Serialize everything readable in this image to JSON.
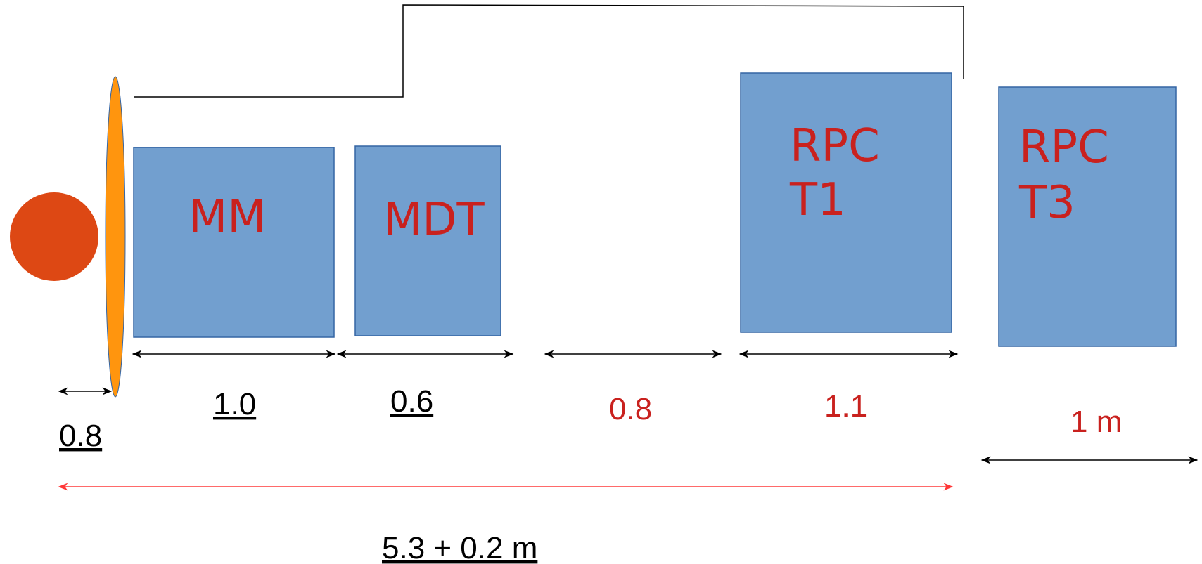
{
  "colors": {
    "box_fill": "#729fcf",
    "box_stroke": "#3465a4",
    "label_red": "#c9211e",
    "circle": "#dd4814",
    "ellipse": "#ff950e",
    "total_arrow": "#ff3838"
  },
  "boxes": [
    {
      "id": "mm",
      "lines": [
        "MM"
      ]
    },
    {
      "id": "mdt",
      "lines": [
        "MDT"
      ]
    },
    {
      "id": "rpc_t1",
      "lines": [
        "RPC",
        "T1"
      ]
    },
    {
      "id": "rpc_t3",
      "lines": [
        "RPC",
        "T3"
      ]
    }
  ],
  "dimensions": {
    "d_first": "0.8",
    "d_mm": "1.0",
    "d_mdt": "0.6",
    "d_gap": "0.8",
    "d_rpc_t1": "1.1",
    "d_rpc_t3": "1 m",
    "total": "5.3 + 0.2 m"
  }
}
